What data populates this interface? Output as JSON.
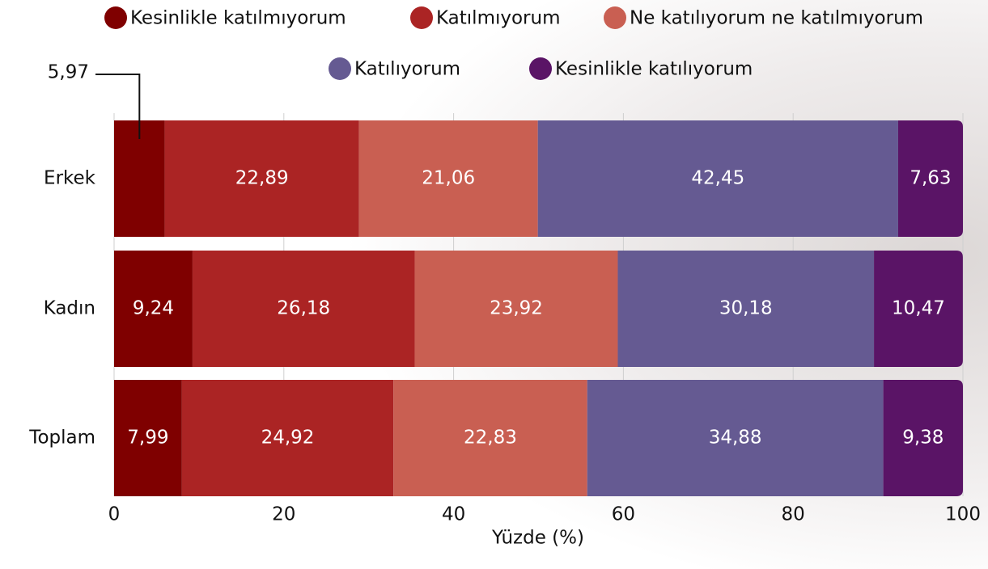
{
  "chart_data": {
    "type": "stacked-bar-horizontal",
    "categories": [
      "Erkek",
      "Kadın",
      "Toplam"
    ],
    "series": [
      {
        "name": "Kesinlikle katılmıyorum",
        "color": "#7f0000",
        "values": [
          5.97,
          9.24,
          7.99
        ],
        "value_labels": [
          "5,97",
          "9,24",
          "7,99"
        ]
      },
      {
        "name": "Katılmıyorum",
        "color": "#ab2424",
        "values": [
          22.89,
          26.18,
          24.92
        ],
        "value_labels": [
          "22,89",
          "26,18",
          "24,92"
        ]
      },
      {
        "name": "Ne katılıyorum ne katılmıyorum",
        "color": "#c95f52",
        "values": [
          21.06,
          23.92,
          22.83
        ],
        "value_labels": [
          "21,06",
          "23,92",
          "22,83"
        ]
      },
      {
        "name": "Katılıyorum",
        "color": "#655a92",
        "values": [
          42.45,
          30.18,
          34.88
        ],
        "value_labels": [
          "42,45",
          "30,18",
          "34,88"
        ]
      },
      {
        "name": "Kesinlikle katılıyorum",
        "color": "#5a1466",
        "values": [
          7.63,
          10.47,
          9.38
        ],
        "value_labels": [
          "7,63",
          "10,47",
          "9,38"
        ]
      }
    ],
    "xlabel": "Yüzde (%)",
    "xlim": [
      0,
      100
    ],
    "xticks": [
      0,
      20,
      40,
      60,
      80,
      100
    ],
    "grid": true
  }
}
